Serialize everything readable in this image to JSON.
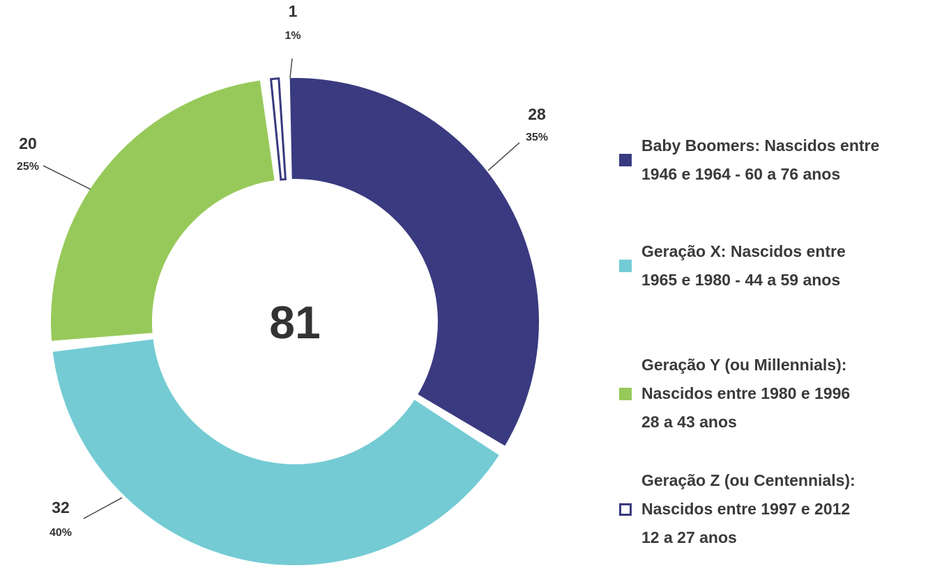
{
  "chart_data": {
    "type": "donut",
    "total": 81,
    "categories": [
      "Baby Boomers: Nascidos entre\n1946 e 1964 - 60 a 76 anos",
      "Geração X: Nascidos entre\n1965 e 1980 - 44 a 59 anos",
      "Geração Y (ou Millennials):\nNascidos entre 1980 e 1996\n28 a 43 anos",
      "Geração Z (ou Centennials):\nNascidos entre 1997 e 2012\n12 a 27 anos"
    ],
    "values": [
      28,
      32,
      20,
      1
    ],
    "percent_labels": [
      "35%",
      "40%",
      "25%",
      "1%"
    ],
    "colors": [
      "#393a7f",
      "#74cbd4",
      "#97c95a",
      "#ffffff"
    ],
    "outline_color": "#393a7f",
    "legend": "right"
  }
}
